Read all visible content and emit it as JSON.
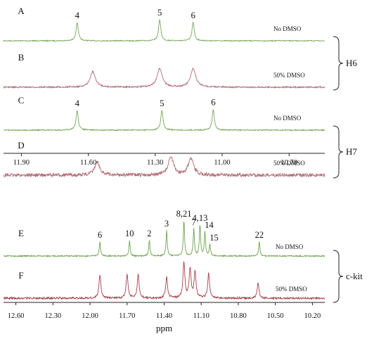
{
  "chart_data": [
    {
      "type": "line",
      "xlabel": "",
      "xlim": [
        11.98,
        10.54
      ],
      "x_reversed": true,
      "tick_labels": [
        "11.90",
        "11.60",
        "11.30",
        "11.00",
        "10.70"
      ],
      "tick_values": [
        11.9,
        11.6,
        11.3,
        11.0,
        10.7
      ],
      "colors": {
        "no_dmso": "#7aa65a",
        "dmso": "#b06a73"
      },
      "groups": [
        {
          "label": "H6",
          "spectra": [
            {
              "panel": "A",
              "condition": "No DMSO",
              "color_key": "no_dmso",
              "peaks": [
                {
                  "label": "4",
                  "x": 11.65,
                  "height": 1.0
                },
                {
                  "label": "5",
                  "x": 11.28,
                  "height": 1.15
                },
                {
                  "label": "6",
                  "x": 11.13,
                  "height": 1.0
                }
              ]
            },
            {
              "panel": "B",
              "condition": "50% DMSO",
              "color_key": "dmso",
              "peaks": [
                {
                  "label": "",
                  "x": 11.58,
                  "height": 0.85
                },
                {
                  "label": "",
                  "x": 11.28,
                  "height": 1.0
                },
                {
                  "label": "",
                  "x": 11.13,
                  "height": 1.0
                }
              ]
            }
          ]
        },
        {
          "label": "H7",
          "spectra": [
            {
              "panel": "C",
              "condition": "No DMSO",
              "color_key": "no_dmso",
              "peaks": [
                {
                  "label": "4",
                  "x": 11.65,
                  "height": 1.0
                },
                {
                  "label": "5",
                  "x": 11.27,
                  "height": 1.0
                },
                {
                  "label": "6",
                  "x": 11.04,
                  "height": 1.05
                }
              ]
            },
            {
              "panel": "D",
              "condition": "50% DMSO",
              "color_key": "dmso",
              "peaks": [
                {
                  "label": "",
                  "x": 11.56,
                  "height": 0.7
                },
                {
                  "label": "",
                  "x": 11.23,
                  "height": 1.0
                },
                {
                  "label": "",
                  "x": 11.14,
                  "height": 0.9
                }
              ]
            }
          ]
        }
      ]
    },
    {
      "type": "line",
      "xlabel": "ppm",
      "xlim": [
        12.7,
        10.1
      ],
      "x_reversed": true,
      "tick_labels": [
        "12.60",
        "12.30",
        "12.00",
        "11.70",
        "11.40",
        "11.10",
        "10.80",
        "10.50",
        "10.20"
      ],
      "tick_values": [
        12.6,
        12.3,
        12.0,
        11.7,
        11.4,
        11.1,
        10.8,
        10.5,
        10.2
      ],
      "colors": {
        "no_dmso": "#6ea24c",
        "dmso": "#a4404c"
      },
      "groups": [
        {
          "label": "c-kit",
          "spectra": [
            {
              "panel": "E",
              "condition": "No DMSO",
              "color_key": "no_dmso",
              "peaks": [
                {
                  "label": "6",
                  "x": 11.92,
                  "height": 0.5
                },
                {
                  "label": "10",
                  "x": 11.68,
                  "height": 0.55
                },
                {
                  "label": "2",
                  "x": 11.52,
                  "height": 0.55
                },
                {
                  "label": "3",
                  "x": 11.38,
                  "height": 0.9
                },
                {
                  "label": "8,21",
                  "x": 11.24,
                  "height": 1.25
                },
                {
                  "label": "7",
                  "x": 11.16,
                  "height": 0.95
                },
                {
                  "label": "4,13",
                  "x": 11.11,
                  "height": 1.1
                },
                {
                  "label": "14",
                  "x": 11.07,
                  "height": 0.85
                },
                {
                  "label": "15",
                  "x": 11.03,
                  "height": 0.4
                },
                {
                  "label": "22",
                  "x": 10.63,
                  "height": 0.5
                }
              ]
            },
            {
              "panel": "F",
              "condition": "50% DMSO",
              "color_key": "dmso",
              "peaks": [
                {
                  "label": "",
                  "x": 11.92,
                  "height": 0.8
                },
                {
                  "label": "",
                  "x": 11.7,
                  "height": 0.8
                },
                {
                  "label": "",
                  "x": 11.61,
                  "height": 0.8
                },
                {
                  "label": "",
                  "x": 11.38,
                  "height": 0.7
                },
                {
                  "label": "",
                  "x": 11.24,
                  "height": 1.2
                },
                {
                  "label": "",
                  "x": 11.19,
                  "height": 1.0
                },
                {
                  "label": "",
                  "x": 11.15,
                  "height": 0.9
                },
                {
                  "label": "",
                  "x": 11.04,
                  "height": 0.85
                },
                {
                  "label": "",
                  "x": 10.64,
                  "height": 0.5
                }
              ]
            }
          ]
        }
      ]
    }
  ]
}
